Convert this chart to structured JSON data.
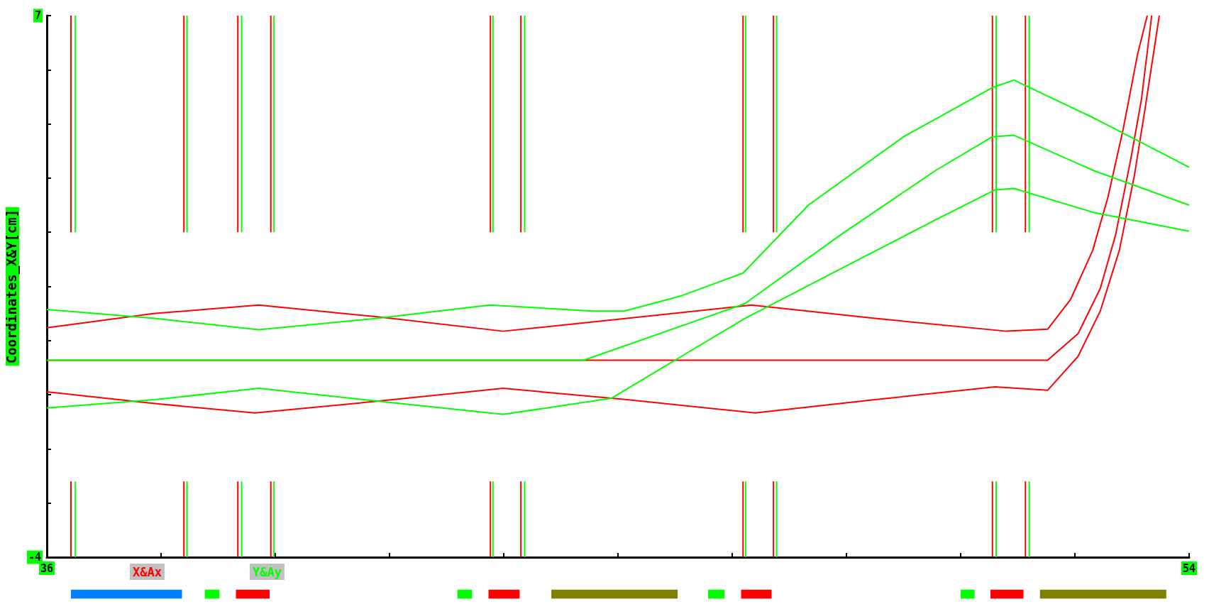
{
  "chart_data": [
    {
      "type": "line",
      "ylabel": "Coordinates_X&Y[cm]",
      "xlim": [
        36,
        54
      ],
      "ylim": [
        -4,
        7
      ],
      "xticks": [
        36,
        {
          "value": 37.8,
          "label": null
        },
        {
          "value": 39.6,
          "label": null
        },
        {
          "value": 41.4,
          "label": null
        },
        {
          "value": 43.2,
          "label": null
        },
        {
          "value": 45,
          "label": null
        },
        {
          "value": 46.8,
          "label": null
        },
        {
          "value": 48.6,
          "label": null
        },
        {
          "value": 50.4,
          "label": null
        },
        {
          "value": 52.2,
          "label": null
        },
        54
      ],
      "yticks": [
        -4,
        {
          "value": -2.9,
          "label": null
        },
        {
          "value": -1.8,
          "label": null
        },
        {
          "value": -0.7,
          "label": null
        },
        {
          "value": 0.4,
          "label": null
        },
        {
          "value": 1.5,
          "label": null
        },
        {
          "value": 2.6,
          "label": null
        },
        {
          "value": 3.7,
          "label": null
        },
        {
          "value": 4.8,
          "label": null
        },
        {
          "value": 5.9,
          "label": null
        },
        7
      ],
      "grid": false,
      "legend": "bottom left",
      "marker": "none",
      "line_style": "solid",
      "series": [
        {
          "name": "X&Ax",
          "color": "#ff0000",
          "x": [
            36,
            37.68,
            39.34,
            41.23,
            43.19,
            45.14,
            47.1,
            49.05,
            51.12,
            51.77,
            52.13,
            52.48,
            52.72,
            52.96,
            53.19,
            53.34,
            null,
            36,
            51.77,
            52.25,
            52.6,
            52.84,
            53.08,
            53.25,
            53.41,
            null,
            36,
            37.7,
            39.28,
            41.23,
            43.19,
            45.14,
            47.16,
            49.05,
            50.94,
            51.77,
            52.25,
            52.6,
            52.9,
            53.14,
            53.31,
            53.53
          ],
          "values": [
            0.66,
            0.95,
            1.12,
            0.88,
            0.59,
            0.85,
            1.12,
            0.85,
            0.59,
            0.63,
            1.23,
            2.23,
            3.31,
            4.69,
            6.23,
            7,
            null,
            0,
            0,
            0.54,
            1.46,
            2.54,
            4.08,
            5.31,
            7,
            null,
            -0.64,
            -0.88,
            -1.07,
            -0.83,
            -0.57,
            -0.8,
            -1.07,
            -0.8,
            -0.54,
            -0.61,
            0.08,
            1.0,
            2.23,
            3.77,
            5.15,
            7
          ]
        },
        {
          "name": "Y&Ay",
          "color": "#00ff00",
          "x": [
            36,
            37.7,
            39.34,
            41.2,
            42.98,
            44.6,
            45.1,
            46.0,
            46.97,
            48.0,
            49.5,
            50.9,
            51.24,
            52.5,
            54,
            null,
            36,
            44.46,
            47.0,
            48.5,
            50.0,
            50.9,
            51.24,
            52.5,
            54,
            null,
            36,
            37.7,
            39.34,
            41.2,
            43.19,
            44.9,
            46.0,
            47.0,
            48.5,
            50.0,
            50.94,
            51.24,
            52.5,
            54
          ],
          "values": [
            1.03,
            0.85,
            0.62,
            0.85,
            1.12,
            1.0,
            1.0,
            1.31,
            1.77,
            3.15,
            4.54,
            5.54,
            5.69,
            4.92,
            3.92,
            null,
            0,
            0,
            1.15,
            2.54,
            3.85,
            4.54,
            4.57,
            3.85,
            3.15,
            null,
            -0.97,
            -0.8,
            -0.57,
            -0.83,
            -1.1,
            -0.77,
            0.08,
            0.85,
            1.85,
            2.85,
            3.46,
            3.49,
            3.0,
            2.62
          ]
        }
      ],
      "ref_lines": [
        {
          "axis": "x",
          "value": 36.38,
          "color": "#ff0000"
        },
        {
          "axis": "x",
          "value": 36.45,
          "color": "#00ff00"
        },
        {
          "axis": "x",
          "value": 38.16,
          "color": "#ff0000"
        },
        {
          "axis": "x",
          "value": 38.21,
          "color": "#00ff00"
        },
        {
          "axis": "x",
          "value": 39.01,
          "color": "#ff0000"
        },
        {
          "axis": "x",
          "value": 39.07,
          "color": "#00ff00"
        },
        {
          "axis": "x",
          "value": 39.53,
          "color": "#ff0000"
        },
        {
          "axis": "x",
          "value": 39.58,
          "color": "#00ff00"
        },
        {
          "axis": "x",
          "value": 42.99,
          "color": "#ff0000"
        },
        {
          "axis": "x",
          "value": 43.03,
          "color": "#00ff00"
        },
        {
          "axis": "x",
          "value": 43.47,
          "color": "#ff0000"
        },
        {
          "axis": "x",
          "value": 43.53,
          "color": "#00ff00"
        },
        {
          "axis": "x",
          "value": 46.97,
          "color": "#ff0000"
        },
        {
          "axis": "x",
          "value": 47.01,
          "color": "#00ff00"
        },
        {
          "axis": "x",
          "value": 47.45,
          "color": "#ff0000"
        },
        {
          "axis": "x",
          "value": 47.5,
          "color": "#00ff00"
        },
        {
          "axis": "x",
          "value": 50.9,
          "color": "#ff0000"
        },
        {
          "axis": "x",
          "value": 50.96,
          "color": "#00ff00"
        },
        {
          "axis": "x",
          "value": 51.42,
          "color": "#ff0000"
        },
        {
          "axis": "x",
          "value": 51.48,
          "color": "#00ff00"
        }
      ]
    },
    {
      "type": "bar",
      "orientation": "horizontal",
      "xlim": [
        36,
        54
      ],
      "tick_labels": false,
      "categories": [
        null
      ],
      "series": [
        {
          "color": "#0080ff",
          "base": [
            36.38
          ],
          "values": [
            1.75
          ]
        },
        {
          "color": "#00ff00",
          "base": [
            38.49
          ],
          "values": [
            0.23
          ]
        },
        {
          "color": "#ff0000",
          "base": [
            38.98
          ],
          "values": [
            0.53
          ]
        },
        {
          "color": "#00ff00",
          "base": [
            42.47
          ],
          "values": [
            0.23
          ]
        },
        {
          "color": "#ff0000",
          "base": [
            42.96
          ],
          "values": [
            0.49
          ]
        },
        {
          "color": "#808000",
          "base": [
            43.95
          ],
          "values": [
            1.99
          ]
        },
        {
          "color": "#00ff00",
          "base": [
            46.42
          ],
          "values": [
            0.26
          ]
        },
        {
          "color": "#ff0000",
          "base": [
            46.94
          ],
          "values": [
            0.48
          ]
        },
        {
          "color": "#00ff00",
          "base": [
            50.4
          ],
          "values": [
            0.22
          ]
        },
        {
          "color": "#ff0000",
          "base": [
            50.87
          ],
          "values": [
            0.52
          ]
        },
        {
          "color": "#808000",
          "base": [
            51.65
          ],
          "values": [
            1.99
          ]
        }
      ]
    }
  ]
}
